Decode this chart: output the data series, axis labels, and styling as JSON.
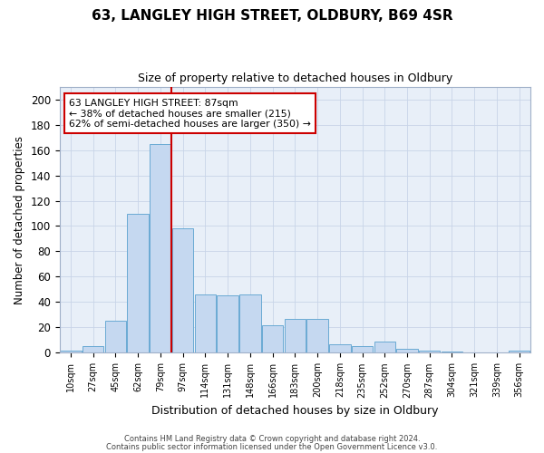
{
  "title_line1": "63, LANGLEY HIGH STREET, OLDBURY, B69 4SR",
  "title_line2": "Size of property relative to detached houses in Oldbury",
  "xlabel": "Distribution of detached houses by size in Oldbury",
  "ylabel": "Number of detached properties",
  "bar_labels": [
    "10sqm",
    "27sqm",
    "45sqm",
    "62sqm",
    "79sqm",
    "97sqm",
    "114sqm",
    "131sqm",
    "148sqm",
    "166sqm",
    "183sqm",
    "200sqm",
    "218sqm",
    "235sqm",
    "252sqm",
    "270sqm",
    "287sqm",
    "304sqm",
    "321sqm",
    "339sqm",
    "356sqm"
  ],
  "bar_heights": [
    2,
    5,
    25,
    110,
    165,
    98,
    46,
    45,
    46,
    22,
    27,
    27,
    7,
    5,
    9,
    3,
    2,
    1,
    0,
    0,
    2
  ],
  "bar_color": "#c5d8f0",
  "bar_edgecolor": "#6aaad4",
  "vline_x_index": 4.5,
  "vline_color": "#cc0000",
  "annotation_line1": "63 LANGLEY HIGH STREET: 87sqm",
  "annotation_line2": "← 38% of detached houses are smaller (215)",
  "annotation_line3": "62% of semi-detached houses are larger (350) →",
  "annotation_box_edgecolor": "#cc0000",
  "ylim": [
    0,
    210
  ],
  "yticks": [
    0,
    20,
    40,
    60,
    80,
    100,
    120,
    140,
    160,
    180,
    200
  ],
  "grid_color": "#c8d4e8",
  "background_color": "#e8eff8",
  "footer_line1": "Contains HM Land Registry data © Crown copyright and database right 2024.",
  "footer_line2": "Contains public sector information licensed under the Open Government Licence v3.0."
}
